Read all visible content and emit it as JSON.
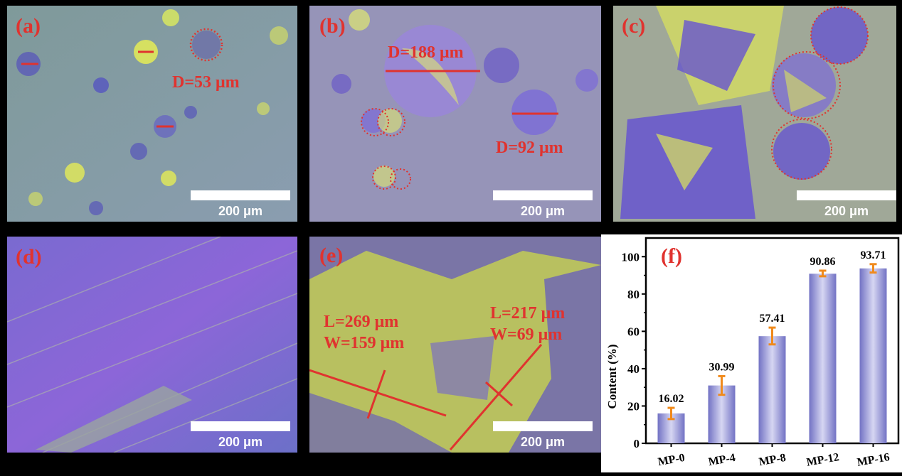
{
  "panels": [
    {
      "id": "a",
      "label": "(a)",
      "scale": "200 μm",
      "annotations": [
        "D=53 μm"
      ]
    },
    {
      "id": "b",
      "label": "(b)",
      "scale": "200 μm",
      "annotations": [
        "D=188 μm",
        "D=92 μm"
      ]
    },
    {
      "id": "c",
      "label": "(c)",
      "scale": "200 μm",
      "annotations": []
    },
    {
      "id": "d",
      "label": "(d)",
      "scale": "200 μm",
      "annotations": []
    },
    {
      "id": "e",
      "label": "(e)",
      "scale": "200 μm",
      "annotations": [
        "L=269 μm",
        "W=159 μm",
        "L=217 μm",
        "W=69 μm"
      ]
    }
  ],
  "colors": {
    "annotation": "#e0332f",
    "bar": "#8484cc",
    "error_bar": "#f08a1c",
    "axis": "#000000"
  },
  "chart_data": {
    "type": "bar",
    "panel_label": "(f)",
    "categories": [
      "MP-0",
      "MP-4",
      "MP-8",
      "MP-12",
      "MP-16"
    ],
    "values": [
      16.02,
      30.99,
      57.41,
      90.86,
      93.71
    ],
    "data_labels": [
      "16.02",
      "30.99",
      "57.41",
      "90.86",
      "93.71"
    ],
    "error_low": [
      13,
      26,
      53,
      89.5,
      91.5
    ],
    "error_high": [
      19,
      36,
      62,
      92.5,
      96
    ],
    "ylabel": "Content (%)",
    "xlabel": "",
    "ylim": [
      0,
      110
    ],
    "yticks": [
      0,
      20,
      40,
      60,
      80,
      100
    ],
    "grid": false
  }
}
